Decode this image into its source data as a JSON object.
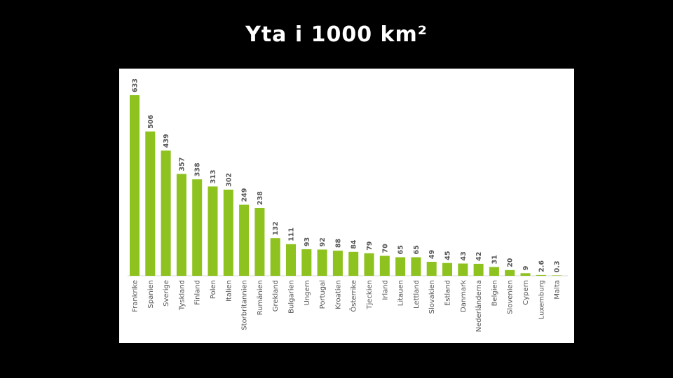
{
  "slide": {
    "title": "Yta i 1000 km²"
  },
  "colors": {
    "background": "#000000",
    "title": "#ffffff",
    "panel": "#ffffff",
    "bar": "#8ec21f",
    "label": "#555555",
    "baseline": "#d9d9d9"
  },
  "chart_data": {
    "type": "bar",
    "title": "Yta i 1000 km²",
    "xlabel": "",
    "ylabel": "",
    "grid": false,
    "legend": "none",
    "ylim": [
      0,
      633
    ],
    "categories": [
      "Frankrike",
      "Spanien",
      "Sverige",
      "Tyskland",
      "Finland",
      "Polen",
      "Italien",
      "Storbritannien",
      "Rumänien",
      "Grekland",
      "Bulgarien",
      "Ungern",
      "Portugal",
      "Kroatien",
      "Österrike",
      "Tjeckien",
      "Irland",
      "Litauen",
      "Lettland",
      "Slovakien",
      "Estland",
      "Danmark",
      "Nederländerna",
      "Belgien",
      "Slovenien",
      "Cypern",
      "Luxemburg",
      "Malta"
    ],
    "value_labels": [
      "633",
      "506",
      "439",
      "357",
      "338",
      "313",
      "302",
      "249",
      "238",
      "132",
      "111",
      "93",
      "92",
      "88",
      "84",
      "79",
      "70",
      "65",
      "65",
      "49",
      "45",
      "43",
      "42",
      "31",
      "20",
      "9",
      "2.6",
      "0.3"
    ],
    "values": [
      633,
      506,
      439,
      357,
      338,
      313,
      302,
      249,
      238,
      132,
      111,
      93,
      92,
      88,
      84,
      79,
      70,
      65,
      65,
      49,
      45,
      43,
      42,
      31,
      20,
      9,
      2.6,
      0.3
    ]
  }
}
